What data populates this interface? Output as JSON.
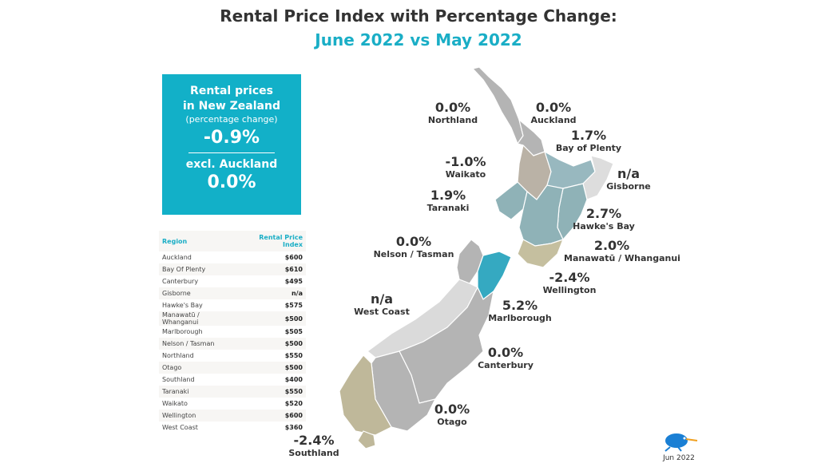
{
  "title": "Rental Price Index with Percentage Change:",
  "subtitle": "June 2022 vs May 2022",
  "summary": {
    "heading_line1": "Rental prices",
    "heading_line2": "in New Zealand",
    "sub": "(percentage change)",
    "nz_change": "-0.9%",
    "excl_label": "excl. Auckland",
    "excl_change": "0.0%"
  },
  "table": {
    "headers": [
      "Region",
      "Rental Price Index"
    ],
    "rows": [
      [
        "Auckland",
        "$600"
      ],
      [
        "Bay Of Plenty",
        "$610"
      ],
      [
        "Canterbury",
        "$495"
      ],
      [
        "Gisborne",
        "n/a"
      ],
      [
        "Hawke's Bay",
        "$575"
      ],
      [
        "Manawatū / Whanganui",
        "$500"
      ],
      [
        "Marlborough",
        "$505"
      ],
      [
        "Nelson / Tasman",
        "$500"
      ],
      [
        "Northland",
        "$550"
      ],
      [
        "Otago",
        "$500"
      ],
      [
        "Southland",
        "$400"
      ],
      [
        "Taranaki",
        "$550"
      ],
      [
        "Waikato",
        "$520"
      ],
      [
        "Wellington",
        "$600"
      ],
      [
        "West Coast",
        "$360"
      ]
    ]
  },
  "map_labels": [
    {
      "region": "Northland",
      "change": "0.0%",
      "color": "#b4b4b4"
    },
    {
      "region": "Auckland",
      "change": "0.0%",
      "color": "#b4b4b4"
    },
    {
      "region": "Bay of Plenty",
      "change": "1.7%",
      "color": "#98b8bf"
    },
    {
      "region": "Waikato",
      "change": "-1.0%",
      "color": "#bab2a6"
    },
    {
      "region": "Gisborne",
      "change": "n/a",
      "color": "#dddddd"
    },
    {
      "region": "Taranaki",
      "change": "1.9%",
      "color": "#8fb2b7"
    },
    {
      "region": "Hawke's Bay",
      "change": "2.7%",
      "color": "#8fb2b7"
    },
    {
      "region": "Manawatū / Whanganui",
      "change": "2.0%",
      "color": "#8fb2b7"
    },
    {
      "region": "Nelson / Tasman",
      "change": "0.0%",
      "color": "#b4b4b4"
    },
    {
      "region": "Wellington",
      "change": "-2.4%",
      "color": "#c5bf9f"
    },
    {
      "region": "West Coast",
      "change": "n/a",
      "color": "#dadada"
    },
    {
      "region": "Marlborough",
      "change": "5.2%",
      "color": "#35a9c1"
    },
    {
      "region": "Canterbury",
      "change": "0.0%",
      "color": "#b4b4b4"
    },
    {
      "region": "Otago",
      "change": "0.0%",
      "color": "#b4b4b4"
    },
    {
      "region": "Southland",
      "change": "-2.4%",
      "color": "#bfb89a"
    }
  ],
  "logo": {
    "caption": "Jun 2022",
    "icon": "kiwi-bird-icon"
  }
}
